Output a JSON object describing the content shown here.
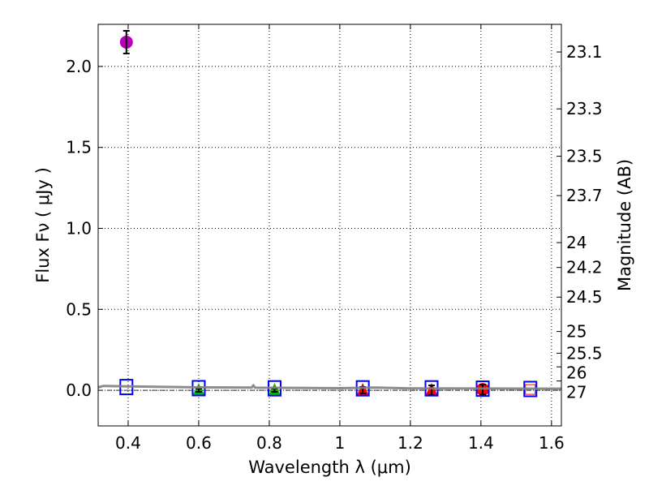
{
  "chart_data": {
    "type": "scatter",
    "xlabel": "Wavelength  λ (μm)",
    "ylabel": "Flux  Fν  ( μJy )",
    "y2label": "Magnitude (AB)",
    "xlim": [
      0.315,
      1.628
    ],
    "ylim": [
      -0.22,
      2.26
    ],
    "grid": true,
    "xticks": [
      0.4,
      0.6,
      0.8,
      1.0,
      1.2,
      1.4,
      1.6
    ],
    "xtick_labels": [
      "0.4",
      "0.6",
      "0.8",
      "1",
      "1.2",
      "1.4",
      "1.6"
    ],
    "yticks": [
      0.0,
      0.5,
      1.0,
      1.5,
      2.0
    ],
    "ytick_labels": [
      "0.0",
      "0.5",
      "1.0",
      "1.5",
      "2.0"
    ],
    "mag_ticks": [
      "23.1",
      "23.3",
      "23.5",
      "23.7",
      "24",
      "24.2",
      "24.5",
      "25",
      "25.5",
      "26",
      "27"
    ],
    "mag_zeropoint": 23.9,
    "series": [
      {
        "name": "detection",
        "marker": "circle",
        "color": "#bb00bb",
        "points": [
          {
            "x": 0.395,
            "y": 2.15,
            "err": 0.07
          }
        ]
      },
      {
        "name": "upper-limit-green",
        "marker": "triangle",
        "color": "#00bb00",
        "points": [
          {
            "x": 0.6,
            "y": 0.0,
            "err": 0.01
          },
          {
            "x": 0.815,
            "y": 0.0,
            "err": 0.01
          }
        ]
      },
      {
        "name": "upper-limit-red",
        "marker": "triangle",
        "color": "#ff0000",
        "points": [
          {
            "x": 1.065,
            "y": 0.0,
            "err": 0.02
          },
          {
            "x": 1.26,
            "y": 0.0,
            "err": 0.03
          }
        ]
      },
      {
        "name": "detection-red",
        "marker": "circle",
        "color": "#ff0000",
        "points": [
          {
            "x": 1.405,
            "y": 0.005,
            "err": 0.03
          }
        ]
      },
      {
        "name": "red-square",
        "marker": "square-small",
        "color": "#ff0000",
        "points": [
          {
            "x": 1.54,
            "y": 0.005
          }
        ]
      },
      {
        "name": "model-photometry",
        "marker": "square-open",
        "color": "#0000ff",
        "points": [
          {
            "x": 0.395,
            "y": 0.02
          },
          {
            "x": 0.6,
            "y": 0.013
          },
          {
            "x": 0.815,
            "y": 0.012
          },
          {
            "x": 1.065,
            "y": 0.012
          },
          {
            "x": 1.26,
            "y": 0.012
          },
          {
            "x": 1.405,
            "y": 0.01
          },
          {
            "x": 1.54,
            "y": 0.008
          }
        ]
      },
      {
        "name": "model-spectrum",
        "marker": "line",
        "color": "#808080",
        "points": [
          {
            "x": 0.315,
            "y": 0.018
          },
          {
            "x": 0.33,
            "y": 0.027
          },
          {
            "x": 0.4,
            "y": 0.024
          },
          {
            "x": 0.6,
            "y": 0.018
          },
          {
            "x": 0.75,
            "y": 0.017
          },
          {
            "x": 0.755,
            "y": 0.03
          },
          {
            "x": 0.76,
            "y": 0.016
          },
          {
            "x": 1.0,
            "y": 0.013
          },
          {
            "x": 1.1,
            "y": 0.017
          },
          {
            "x": 1.2,
            "y": 0.012
          },
          {
            "x": 1.4,
            "y": 0.011
          },
          {
            "x": 1.628,
            "y": 0.01
          }
        ]
      }
    ]
  }
}
